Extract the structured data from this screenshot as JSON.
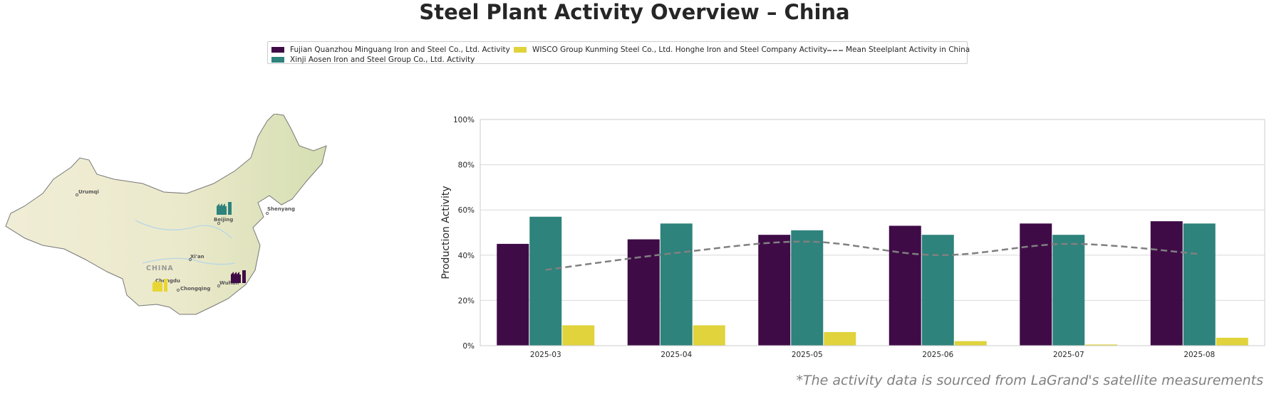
{
  "title": "Steel Plant Activity Overview – China",
  "footnote": "*The activity data is sourced from LaGrand's satellite measurements",
  "legend": {
    "items": [
      {
        "label": "Fujian Quanzhou Minguang Iron and Steel Co., Ltd. Activity",
        "color": "#3f0b47"
      },
      {
        "label": "WISCO Group Kunming Steel Co., Ltd. Honghe Iron and Steel Company Activity",
        "color": "#e0d33c"
      },
      {
        "label": "Mean Steelplant Activity in China",
        "color": "#808080"
      },
      {
        "label": "Xinji Aosen Iron and Steel Group Co., Ltd. Activity",
        "color": "#2e837c"
      }
    ]
  },
  "map": {
    "country_label": "CHINA",
    "cities": [
      "Urumqi",
      "Beijing",
      "Shenyang",
      "Xi'an",
      "Chengdu",
      "Chongqing",
      "Wuhan"
    ],
    "plant_markers": [
      {
        "plant": "Xinji Aosen Iron and Steel Group Co., Ltd.",
        "color": "#2e837c",
        "icon": "factory-icon"
      },
      {
        "plant": "Fujian Quanzhou Minguang Iron and Steel Co., Ltd.",
        "color": "#3f0b47",
        "icon": "factory-icon"
      },
      {
        "plant": "WISCO Group Kunming Steel Co., Ltd. Honghe Iron and Steel Company",
        "color": "#e0d33c",
        "icon": "factory-icon"
      }
    ]
  },
  "chart_data": {
    "type": "bar",
    "categories": [
      "2025-03",
      "2025-04",
      "2025-05",
      "2025-06",
      "2025-07",
      "2025-08"
    ],
    "series": [
      {
        "name": "Fujian Quanzhou Minguang Iron and Steel Co., Ltd. Activity",
        "color": "#3f0b47",
        "values": [
          45,
          47,
          49,
          53,
          54,
          55
        ]
      },
      {
        "name": "Xinji Aosen Iron and Steel Group Co., Ltd. Activity",
        "color": "#2e837c",
        "values": [
          57,
          54,
          51,
          49,
          49,
          54
        ]
      },
      {
        "name": "WISCO Group Kunming Steel Co., Ltd. Honghe Iron and Steel Company Activity",
        "color": "#e0d33c",
        "values": [
          9,
          9,
          6,
          2,
          0.5,
          3.5
        ]
      }
    ],
    "mean_line": {
      "name": "Mean Steelplant Activity in China",
      "color": "#808080",
      "style": "dashed",
      "values": [
        33.5,
        41,
        46,
        40,
        45,
        40.5
      ]
    },
    "ylabel": "Production Activity",
    "xlabel": "",
    "ylim": [
      0,
      100
    ],
    "yticks": [
      "0%",
      "20%",
      "40%",
      "60%",
      "80%",
      "100%"
    ],
    "grid": true
  }
}
